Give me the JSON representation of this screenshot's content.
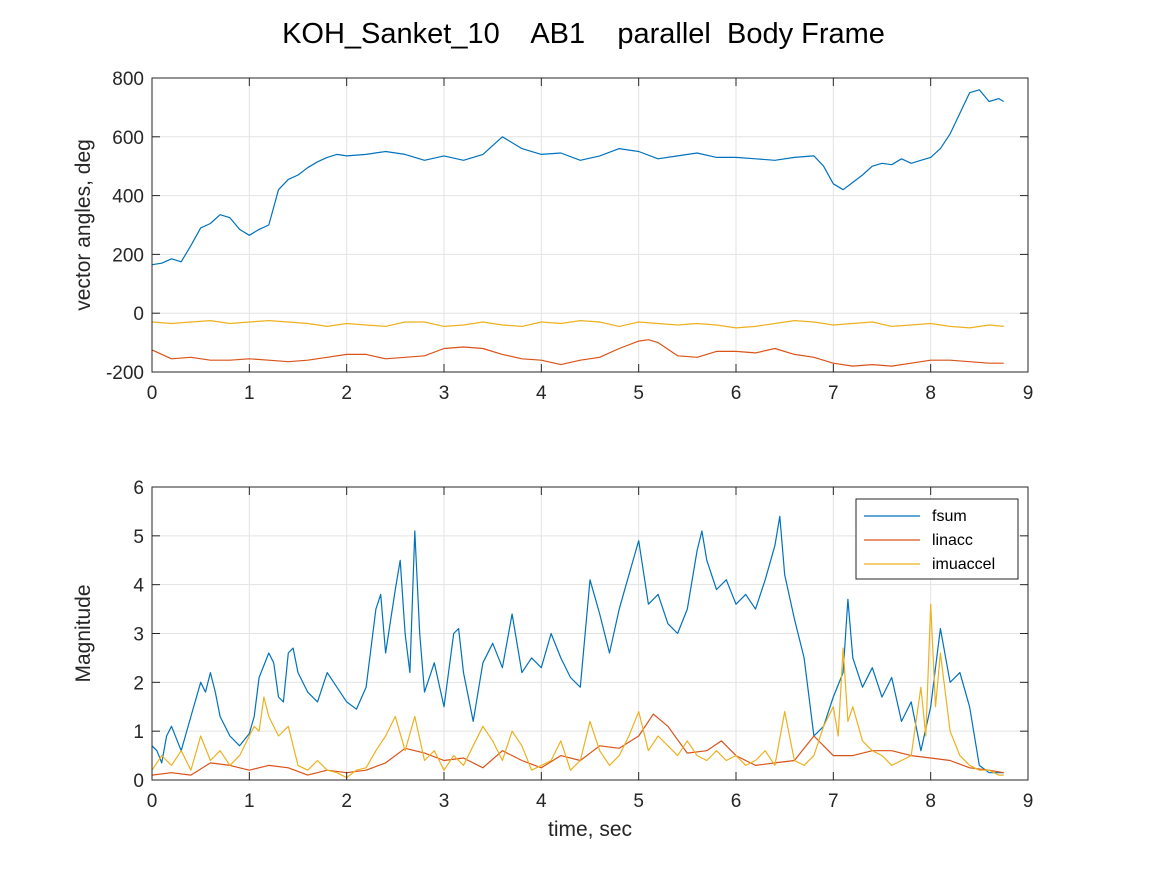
{
  "title": "KOH_Sanket_10    AB1    parallel  Body Frame",
  "colors": {
    "series1": "#0072BD",
    "series2": "#D95319",
    "series3": "#EDB120"
  },
  "chart_data": [
    {
      "type": "line",
      "xlabel": "",
      "ylabel": "vector angles, deg",
      "xlim": [
        0,
        9
      ],
      "ylim": [
        -200,
        800
      ],
      "xticks": [
        0,
        1,
        2,
        3,
        4,
        5,
        6,
        7,
        8,
        9
      ],
      "yticks": [
        -200,
        0,
        200,
        400,
        600,
        800
      ],
      "grid": true,
      "legend": "none",
      "series": [
        {
          "x": [
            0,
            0.1,
            0.2,
            0.3,
            0.4,
            0.5,
            0.6,
            0.7,
            0.8,
            0.9,
            1.0,
            1.1,
            1.2,
            1.3,
            1.4,
            1.5,
            1.6,
            1.7,
            1.8,
            1.9,
            2.0,
            2.2,
            2.4,
            2.6,
            2.8,
            3.0,
            3.2,
            3.4,
            3.6,
            3.8,
            4.0,
            4.2,
            4.4,
            4.6,
            4.8,
            5.0,
            5.2,
            5.4,
            5.6,
            5.8,
            6.0,
            6.2,
            6.4,
            6.6,
            6.8,
            6.9,
            7.0,
            7.1,
            7.2,
            7.3,
            7.4,
            7.5,
            7.6,
            7.7,
            7.8,
            7.9,
            8.0,
            8.1,
            8.2,
            8.3,
            8.4,
            8.5,
            8.6,
            8.7,
            8.75
          ],
          "values": [
            165,
            170,
            185,
            175,
            230,
            290,
            305,
            335,
            325,
            285,
            265,
            285,
            300,
            420,
            455,
            470,
            495,
            515,
            530,
            540,
            535,
            540,
            550,
            540,
            520,
            535,
            520,
            540,
            600,
            560,
            540,
            545,
            520,
            535,
            560,
            550,
            525,
            535,
            545,
            530,
            530,
            525,
            520,
            530,
            535,
            500,
            440,
            420,
            445,
            470,
            500,
            510,
            505,
            525,
            510,
            520,
            530,
            560,
            610,
            680,
            750,
            760,
            720,
            730,
            720
          ]
        },
        {
          "x": [
            0,
            0.2,
            0.4,
            0.6,
            0.8,
            1.0,
            1.2,
            1.4,
            1.6,
            1.8,
            2.0,
            2.2,
            2.4,
            2.6,
            2.8,
            3.0,
            3.2,
            3.4,
            3.6,
            3.8,
            4.0,
            4.2,
            4.4,
            4.6,
            4.8,
            5.0,
            5.1,
            5.2,
            5.4,
            5.6,
            5.8,
            6.0,
            6.2,
            6.4,
            6.6,
            6.8,
            7.0,
            7.2,
            7.4,
            7.6,
            7.8,
            8.0,
            8.2,
            8.4,
            8.6,
            8.75
          ],
          "values": [
            -125,
            -155,
            -150,
            -160,
            -160,
            -155,
            -160,
            -165,
            -160,
            -150,
            -140,
            -140,
            -155,
            -150,
            -145,
            -120,
            -115,
            -120,
            -140,
            -155,
            -160,
            -175,
            -160,
            -150,
            -120,
            -95,
            -90,
            -100,
            -145,
            -150,
            -130,
            -130,
            -135,
            -120,
            -140,
            -150,
            -170,
            -180,
            -175,
            -180,
            -170,
            -160,
            -160,
            -165,
            -170,
            -170
          ]
        },
        {
          "x": [
            0,
            0.2,
            0.4,
            0.6,
            0.8,
            1.0,
            1.2,
            1.4,
            1.6,
            1.8,
            2.0,
            2.2,
            2.4,
            2.6,
            2.8,
            3.0,
            3.2,
            3.4,
            3.6,
            3.8,
            4.0,
            4.2,
            4.4,
            4.6,
            4.8,
            5.0,
            5.2,
            5.4,
            5.6,
            5.8,
            6.0,
            6.2,
            6.4,
            6.6,
            6.8,
            7.0,
            7.2,
            7.4,
            7.6,
            7.8,
            8.0,
            8.2,
            8.4,
            8.6,
            8.75
          ],
          "values": [
            -30,
            -35,
            -30,
            -25,
            -35,
            -30,
            -25,
            -30,
            -35,
            -45,
            -35,
            -40,
            -45,
            -30,
            -30,
            -45,
            -40,
            -30,
            -40,
            -45,
            -30,
            -35,
            -25,
            -30,
            -45,
            -30,
            -35,
            -40,
            -35,
            -40,
            -50,
            -45,
            -35,
            -25,
            -30,
            -40,
            -35,
            -30,
            -45,
            -40,
            -35,
            -45,
            -50,
            -40,
            -45
          ]
        }
      ]
    },
    {
      "type": "line",
      "xlabel": "time, sec",
      "ylabel": "Magnitude",
      "xlim": [
        0,
        9
      ],
      "ylim": [
        0,
        6
      ],
      "xticks": [
        0,
        1,
        2,
        3,
        4,
        5,
        6,
        7,
        8,
        9
      ],
      "yticks": [
        0,
        1,
        2,
        3,
        4,
        5,
        6
      ],
      "grid": true,
      "legend": "top-right",
      "series": [
        {
          "name": "fsum",
          "x": [
            0,
            0.05,
            0.1,
            0.15,
            0.2,
            0.3,
            0.4,
            0.5,
            0.55,
            0.6,
            0.65,
            0.7,
            0.8,
            0.9,
            1.0,
            1.05,
            1.1,
            1.2,
            1.25,
            1.3,
            1.35,
            1.4,
            1.45,
            1.5,
            1.6,
            1.7,
            1.8,
            1.9,
            2.0,
            2.1,
            2.2,
            2.3,
            2.35,
            2.4,
            2.5,
            2.55,
            2.6,
            2.65,
            2.7,
            2.75,
            2.8,
            2.9,
            3.0,
            3.1,
            3.15,
            3.2,
            3.3,
            3.4,
            3.5,
            3.6,
            3.7,
            3.8,
            3.9,
            4.0,
            4.1,
            4.2,
            4.3,
            4.4,
            4.5,
            4.6,
            4.7,
            4.8,
            4.9,
            5.0,
            5.1,
            5.2,
            5.3,
            5.4,
            5.5,
            5.6,
            5.65,
            5.7,
            5.8,
            5.9,
            6.0,
            6.1,
            6.2,
            6.3,
            6.4,
            6.45,
            6.5,
            6.6,
            6.7,
            6.8,
            6.9,
            7.0,
            7.1,
            7.15,
            7.2,
            7.3,
            7.4,
            7.5,
            7.6,
            7.7,
            7.8,
            7.9,
            8.0,
            8.05,
            8.1,
            8.2,
            8.3,
            8.4,
            8.5,
            8.6,
            8.7,
            8.75
          ],
          "values": [
            0.7,
            0.6,
            0.35,
            0.9,
            1.1,
            0.6,
            1.3,
            2.0,
            1.8,
            2.2,
            1.8,
            1.3,
            0.9,
            0.7,
            0.95,
            1.3,
            2.1,
            2.6,
            2.4,
            1.7,
            1.6,
            2.6,
            2.7,
            2.2,
            1.8,
            1.6,
            2.2,
            1.9,
            1.6,
            1.45,
            1.9,
            3.5,
            3.8,
            2.6,
            3.9,
            4.5,
            3.0,
            2.2,
            5.1,
            3.0,
            1.8,
            2.4,
            1.5,
            3.0,
            3.1,
            2.2,
            1.2,
            2.4,
            2.8,
            2.3,
            3.4,
            2.2,
            2.5,
            2.3,
            3.0,
            2.5,
            2.1,
            1.9,
            4.1,
            3.4,
            2.6,
            3.5,
            4.2,
            4.9,
            3.6,
            3.8,
            3.2,
            3.0,
            3.5,
            4.7,
            5.1,
            4.5,
            3.9,
            4.1,
            3.6,
            3.8,
            3.5,
            4.1,
            4.8,
            5.4,
            4.2,
            3.3,
            2.5,
            0.9,
            1.1,
            1.7,
            2.2,
            3.7,
            2.5,
            1.9,
            2.3,
            1.7,
            2.1,
            1.2,
            1.6,
            0.6,
            1.5,
            2.3,
            3.1,
            2.0,
            2.2,
            1.5,
            0.3,
            0.15,
            0.15,
            0.15
          ]
        },
        {
          "name": "linacc",
          "x": [
            0,
            0.2,
            0.4,
            0.6,
            0.8,
            1.0,
            1.2,
            1.4,
            1.6,
            1.8,
            2.0,
            2.2,
            2.4,
            2.6,
            2.8,
            3.0,
            3.2,
            3.4,
            3.6,
            3.8,
            4.0,
            4.2,
            4.4,
            4.6,
            4.8,
            5.0,
            5.15,
            5.3,
            5.5,
            5.7,
            5.85,
            6.0,
            6.2,
            6.4,
            6.6,
            6.8,
            7.0,
            7.2,
            7.4,
            7.6,
            7.8,
            8.0,
            8.2,
            8.4,
            8.6,
            8.75
          ],
          "values": [
            0.1,
            0.15,
            0.1,
            0.35,
            0.3,
            0.2,
            0.3,
            0.25,
            0.1,
            0.2,
            0.15,
            0.2,
            0.35,
            0.65,
            0.55,
            0.4,
            0.45,
            0.25,
            0.6,
            0.4,
            0.25,
            0.5,
            0.4,
            0.7,
            0.65,
            0.9,
            1.35,
            1.1,
            0.55,
            0.6,
            0.8,
            0.5,
            0.3,
            0.35,
            0.4,
            0.9,
            0.5,
            0.5,
            0.6,
            0.6,
            0.5,
            0.45,
            0.4,
            0.25,
            0.2,
            0.15
          ]
        },
        {
          "name": "imuaccel",
          "x": [
            0,
            0.1,
            0.2,
            0.3,
            0.4,
            0.5,
            0.6,
            0.7,
            0.8,
            0.9,
            1.0,
            1.05,
            1.1,
            1.15,
            1.2,
            1.3,
            1.4,
            1.5,
            1.6,
            1.7,
            1.8,
            1.9,
            2.0,
            2.1,
            2.2,
            2.3,
            2.4,
            2.5,
            2.6,
            2.7,
            2.8,
            2.9,
            3.0,
            3.1,
            3.2,
            3.3,
            3.4,
            3.5,
            3.6,
            3.7,
            3.8,
            3.9,
            4.0,
            4.1,
            4.2,
            4.3,
            4.4,
            4.5,
            4.6,
            4.7,
            4.8,
            4.9,
            5.0,
            5.1,
            5.2,
            5.3,
            5.4,
            5.5,
            5.6,
            5.7,
            5.8,
            5.9,
            6.0,
            6.1,
            6.2,
            6.3,
            6.4,
            6.5,
            6.6,
            6.7,
            6.8,
            6.9,
            7.0,
            7.05,
            7.1,
            7.15,
            7.2,
            7.3,
            7.4,
            7.5,
            7.6,
            7.7,
            7.8,
            7.9,
            7.95,
            8.0,
            8.05,
            8.1,
            8.2,
            8.3,
            8.4,
            8.5,
            8.6,
            8.7,
            8.75
          ],
          "values": [
            0.2,
            0.5,
            0.3,
            0.6,
            0.2,
            0.9,
            0.4,
            0.6,
            0.3,
            0.5,
            0.9,
            1.1,
            1.0,
            1.7,
            1.3,
            0.9,
            1.1,
            0.3,
            0.2,
            0.4,
            0.2,
            0.15,
            0.05,
            0.2,
            0.25,
            0.6,
            0.9,
            1.3,
            0.6,
            1.3,
            0.4,
            0.6,
            0.2,
            0.5,
            0.3,
            0.7,
            1.1,
            0.8,
            0.4,
            1.0,
            0.7,
            0.2,
            0.3,
            0.4,
            0.8,
            0.2,
            0.4,
            1.2,
            0.6,
            0.3,
            0.5,
            0.9,
            1.4,
            0.6,
            0.9,
            0.7,
            0.5,
            0.8,
            0.5,
            0.4,
            0.6,
            0.4,
            0.5,
            0.3,
            0.4,
            0.6,
            0.3,
            1.4,
            0.4,
            0.3,
            0.5,
            1.1,
            1.5,
            0.9,
            2.7,
            1.2,
            1.5,
            0.8,
            0.6,
            0.5,
            0.3,
            0.4,
            0.5,
            1.9,
            0.9,
            3.6,
            1.5,
            2.6,
            1.0,
            0.5,
            0.3,
            0.2,
            0.2,
            0.1,
            0.1
          ]
        }
      ]
    }
  ]
}
